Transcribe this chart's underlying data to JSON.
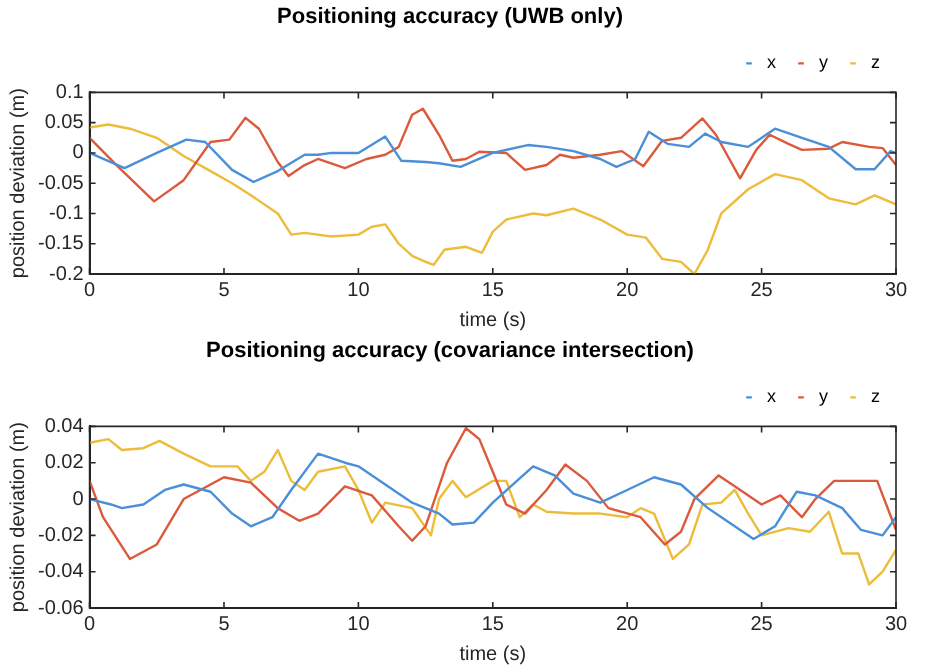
{
  "chart_data": [
    {
      "type": "line",
      "title": "Positioning accuracy (UWB only)",
      "xlabel": "time (s)",
      "ylabel": "position deviation (m)",
      "xlim": [
        0,
        30
      ],
      "xticks": [
        0,
        5,
        10,
        15,
        20,
        25,
        30
      ],
      "ylim": [
        -0.2,
        0.1
      ],
      "yticks": [
        -0.2,
        -0.15,
        -0.1,
        -0.05,
        0,
        0.05,
        0.1
      ],
      "grid": false,
      "legend": "top right",
      "marker": "none",
      "line_style": "solid",
      "series": [
        {
          "name": "x",
          "color": "#4a8fd8",
          "x": [
            0,
            1.3,
            2.5,
            3.6,
            4.3,
            5.3,
            6.1,
            7,
            8,
            8.5,
            9,
            10,
            11,
            11.6,
            12.5,
            13,
            13.8,
            15,
            16.3,
            17,
            18,
            19,
            19.6,
            20.3,
            20.8,
            21.5,
            22.3,
            22.9,
            23.5,
            24.5,
            25.5,
            26.5,
            27.5,
            28.5,
            29.2,
            29.8,
            30
          ],
          "values": [
            0,
            -0.025,
            0,
            0.022,
            0.018,
            -0.028,
            -0.048,
            -0.03,
            -0.003,
            -0.003,
            0,
            0,
            0.027,
            -0.013,
            -0.015,
            -0.017,
            -0.023,
            0,
            0.013,
            0.01,
            0.003,
            -0.01,
            -0.023,
            -0.01,
            0.035,
            0.015,
            0.01,
            0.032,
            0.018,
            0.01,
            0.04,
            0.025,
            0.01,
            -0.027,
            -0.027,
            0.003,
            0
          ]
        },
        {
          "name": "y",
          "color": "#dc5a3c",
          "x": [
            0,
            1,
            2.4,
            3.5,
            4.5,
            5.2,
            5.8,
            6.3,
            7,
            7.4,
            8,
            8.5,
            9.5,
            10.3,
            11,
            11.5,
            12,
            12.4,
            13,
            13.5,
            14,
            14.5,
            15.5,
            16.2,
            17,
            17.5,
            18,
            19,
            19.8,
            20.6,
            21.3,
            22,
            22.8,
            23.3,
            24.2,
            24.8,
            25.3,
            26,
            26.5,
            27.5,
            28,
            29,
            29.5,
            30
          ],
          "values": [
            0.025,
            -0.02,
            -0.08,
            -0.045,
            0.018,
            0.022,
            0.058,
            0.04,
            -0.015,
            -0.038,
            -0.02,
            -0.01,
            -0.025,
            -0.01,
            -0.003,
            0.01,
            0.063,
            0.073,
            0.03,
            -0.013,
            -0.01,
            0.002,
            0,
            -0.028,
            -0.02,
            -0.003,
            -0.008,
            -0.003,
            0.003,
            -0.022,
            0.02,
            0.025,
            0.057,
            0.03,
            -0.042,
            0.005,
            0.03,
            0.015,
            0.005,
            0.007,
            0.018,
            0.01,
            0.008,
            -0.02
          ]
        },
        {
          "name": "z",
          "color": "#ecbc3a",
          "x": [
            0,
            0.7,
            1.5,
            2.5,
            3.5,
            4.5,
            5.3,
            6,
            7,
            7.5,
            8,
            9,
            10,
            10.5,
            11,
            11.5,
            12,
            12.5,
            12.8,
            13.2,
            14,
            14.6,
            15,
            15.5,
            16.5,
            17,
            18,
            19,
            20,
            20.7,
            21.3,
            22,
            22.5,
            23,
            23.5,
            24.5,
            25.5,
            26.5,
            27.5,
            28.5,
            29.2,
            30
          ],
          "values": [
            0.042,
            0.047,
            0.04,
            0.025,
            -0.005,
            -0.03,
            -0.05,
            -0.07,
            -0.1,
            -0.135,
            -0.132,
            -0.138,
            -0.135,
            -0.122,
            -0.118,
            -0.15,
            -0.17,
            -0.18,
            -0.185,
            -0.16,
            -0.155,
            -0.165,
            -0.13,
            -0.11,
            -0.1,
            -0.103,
            -0.092,
            -0.11,
            -0.135,
            -0.14,
            -0.175,
            -0.18,
            -0.2,
            -0.16,
            -0.1,
            -0.06,
            -0.035,
            -0.045,
            -0.075,
            -0.085,
            -0.07,
            -0.085
          ]
        }
      ]
    },
    {
      "type": "line",
      "title": "Positioning accuracy (covariance intersection)",
      "xlabel": "time (s)",
      "ylabel": "position deviation (m)",
      "xlim": [
        0,
        30
      ],
      "xticks": [
        0,
        5,
        10,
        15,
        20,
        25,
        30
      ],
      "ylim": [
        -0.06,
        0.04
      ],
      "yticks": [
        -0.06,
        -0.04,
        -0.02,
        0,
        0.02,
        0.04
      ],
      "grid": false,
      "legend": "top right",
      "marker": "none",
      "line_style": "solid",
      "series": [
        {
          "name": "x",
          "color": "#4a8fd8",
          "x": [
            0,
            0.8,
            1.2,
            2,
            2.8,
            3.5,
            4.5,
            5.3,
            6,
            6.8,
            7.5,
            8.5,
            9.5,
            10,
            11,
            12,
            13,
            13.5,
            14.3,
            15,
            16.5,
            17.3,
            18,
            19,
            20,
            21,
            22,
            23,
            24,
            24.7,
            25.5,
            26.3,
            27,
            28,
            28.7,
            29.5,
            30
          ],
          "values": [
            0,
            -0.003,
            -0.005,
            -0.003,
            0.005,
            0.008,
            0.004,
            -0.008,
            -0.015,
            -0.01,
            0.005,
            0.025,
            0.02,
            0.018,
            0.008,
            -0.002,
            -0.008,
            -0.014,
            -0.013,
            -0.002,
            0.018,
            0.013,
            0.003,
            -0.002,
            0.005,
            0.012,
            0.008,
            -0.005,
            -0.015,
            -0.022,
            -0.015,
            0.004,
            0.002,
            -0.005,
            -0.017,
            -0.02,
            -0.01
          ]
        },
        {
          "name": "y",
          "color": "#dc5a3c",
          "x": [
            0,
            0.5,
            1.5,
            2.5,
            3.5,
            5,
            6,
            7,
            7.8,
            8.5,
            9.5,
            10.5,
            11.5,
            12,
            12.5,
            13.3,
            14,
            14.5,
            15,
            15.5,
            16.2,
            17,
            17.7,
            18.5,
            19.3,
            20.5,
            21.4,
            22,
            22.5,
            23.4,
            24,
            25,
            25.7,
            26.5,
            27,
            27.7,
            28.5,
            29.3,
            30
          ],
          "values": [
            0.01,
            -0.01,
            -0.033,
            -0.025,
            0,
            0.012,
            0.009,
            -0.005,
            -0.012,
            -0.008,
            0.007,
            0.002,
            -0.015,
            -0.023,
            -0.015,
            0.02,
            0.039,
            0.033,
            0.015,
            -0.003,
            -0.008,
            0.005,
            0.019,
            0.01,
            -0.005,
            -0.01,
            -0.025,
            -0.018,
            0,
            0.013,
            0.007,
            -0.003,
            0.002,
            -0.01,
            0,
            0.01,
            0.01,
            0.01,
            -0.017
          ]
        },
        {
          "name": "z",
          "color": "#ecbc3a",
          "x": [
            0,
            0.7,
            1.2,
            2,
            2.6,
            3.5,
            4.5,
            5.5,
            6,
            6.5,
            7,
            7.5,
            8,
            8.5,
            9.5,
            10,
            10.5,
            11,
            12,
            12.7,
            13,
            13.5,
            14,
            15,
            15.5,
            16,
            16.5,
            17,
            18,
            19,
            20,
            20.5,
            21,
            21.7,
            22.3,
            22.8,
            23.5,
            24,
            24.5,
            25,
            26,
            26.8,
            27.5,
            28,
            28.6,
            29,
            29.5,
            30
          ],
          "values": [
            0.031,
            0.033,
            0.027,
            0.028,
            0.032,
            0.025,
            0.018,
            0.018,
            0.01,
            0.015,
            0.027,
            0.01,
            0.005,
            0.015,
            0.018,
            0.005,
            -0.013,
            -0.002,
            -0.005,
            -0.02,
            0,
            0.01,
            0.001,
            0.01,
            0.01,
            -0.01,
            -0.003,
            -0.007,
            -0.008,
            -0.008,
            -0.01,
            -0.005,
            -0.008,
            -0.033,
            -0.025,
            -0.003,
            -0.002,
            0.005,
            -0.008,
            -0.02,
            -0.016,
            -0.018,
            -0.007,
            -0.03,
            -0.03,
            -0.047,
            -0.04,
            -0.028
          ]
        }
      ]
    }
  ]
}
